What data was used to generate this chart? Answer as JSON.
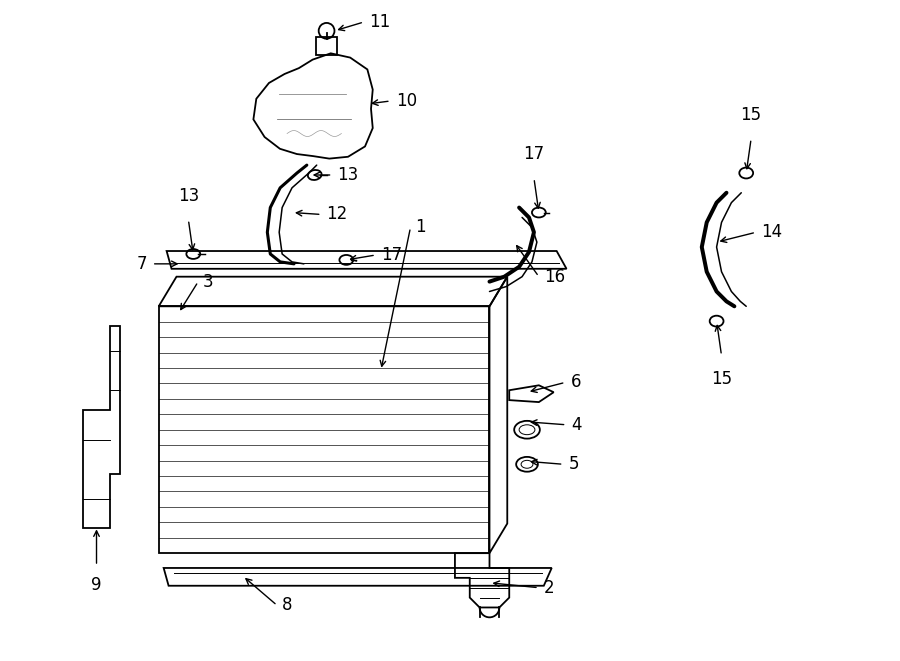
{
  "bg_color": "#ffffff",
  "line_color": "#000000",
  "figsize": [
    9.0,
    6.61
  ],
  "dpi": 100,
  "lw_main": 1.3,
  "lw_thin": 0.7,
  "lw_hose": 2.2,
  "font_label": 12
}
